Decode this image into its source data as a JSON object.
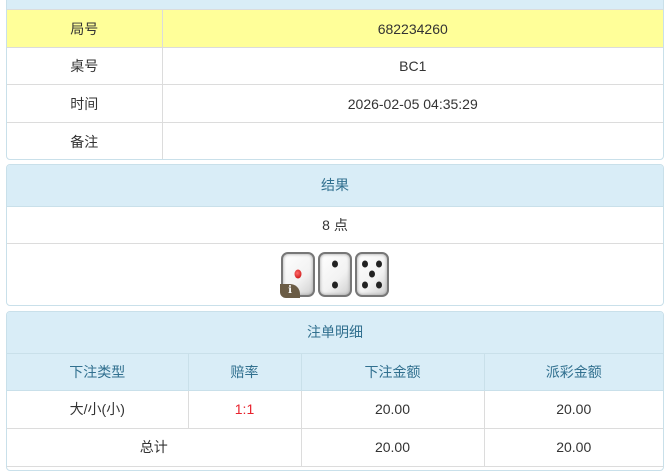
{
  "info": {
    "rows": [
      {
        "label": "局号",
        "value": "682234260"
      },
      {
        "label": "桌号",
        "value": "BC1"
      },
      {
        "label": "时间",
        "value": "2026-02-05 04:35:29"
      },
      {
        "label": "备注",
        "value": ""
      }
    ]
  },
  "result": {
    "title": "结果",
    "text": "8 点",
    "dice": [
      1,
      2,
      5
    ],
    "info_badge": "i"
  },
  "bets": {
    "title": "注单明细",
    "columns": [
      "下注类型",
      "赔率",
      "下注金额",
      "派彩金额"
    ],
    "rows": [
      {
        "type": "大/小(小)",
        "odds": "1:1",
        "amount": "20.00",
        "payout": "20.00"
      }
    ],
    "total": {
      "label": "总计",
      "amount": "20.00",
      "payout": "20.00"
    }
  },
  "colors": {
    "highlight": "#ffff99",
    "header": "#d9edf7",
    "odds": "#e8232e"
  }
}
